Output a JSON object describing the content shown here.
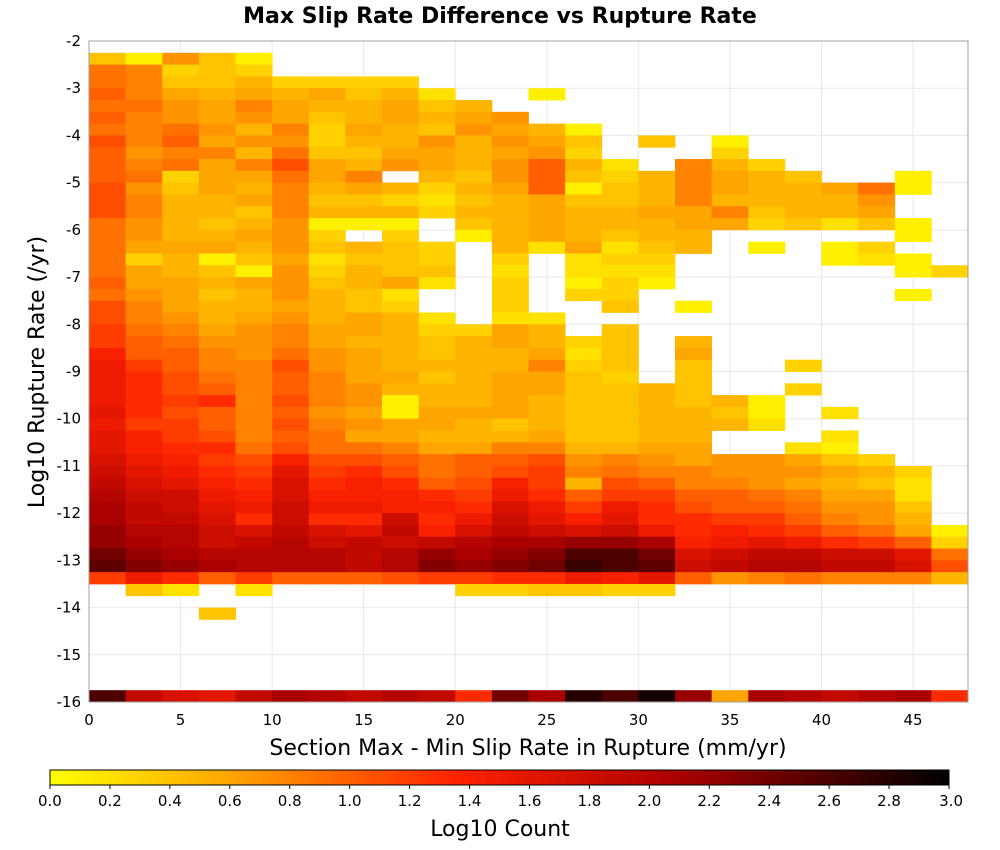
{
  "chart_data": {
    "type": "heatmap",
    "title": "Max Slip Rate Difference vs Rupture Rate",
    "xlabel": "Section Max - Min Slip Rate in Rupture (mm/yr)",
    "ylabel": "Log10 Rupture Rate (/yr)",
    "colorbar_label": "Log10 Count",
    "xlim": [
      0,
      48
    ],
    "ylim": [
      -16,
      -2
    ],
    "x_ticks": [
      "0",
      "5",
      "10",
      "15",
      "20",
      "25",
      "30",
      "35",
      "40",
      "45"
    ],
    "y_ticks": [
      "-2",
      "-3",
      "-4",
      "-5",
      "-6",
      "-7",
      "-8",
      "-9",
      "-10",
      "-11",
      "-12",
      "-13",
      "-14",
      "-15",
      "-16"
    ],
    "colorbar_ticks": [
      "0.0",
      "0.2",
      "0.4",
      "0.6",
      "0.8",
      "1.0",
      "1.2",
      "1.4",
      "1.6",
      "1.8",
      "2.0",
      "2.2",
      "2.4",
      "2.6",
      "2.8",
      "3.0"
    ],
    "colorbar_range": [
      0,
      3
    ],
    "colormap": [
      "#ffff00",
      "#ffa500",
      "#ff2200",
      "#aa0000",
      "#000000"
    ],
    "grid": true,
    "x_bin_width": 2,
    "y_bin_height": 0.25,
    "x_bin_starts": [
      0,
      2,
      4,
      6,
      8,
      10,
      12,
      14,
      16,
      18,
      20,
      22,
      24,
      26,
      28,
      30,
      32,
      34,
      36,
      38,
      40,
      42,
      44,
      46
    ],
    "y_bin_starts": [
      -2.5,
      -2.75,
      -3.0,
      -3.25,
      -3.5,
      -3.75,
      -4.0,
      -4.25,
      -4.5,
      -4.75,
      -5.0,
      -5.25,
      -5.5,
      -5.75,
      -6.0,
      -6.25,
      -6.5,
      -6.75,
      -7.0,
      -7.25,
      -7.5,
      -7.75,
      -8.0,
      -8.25,
      -8.5,
      -8.75,
      -9.0,
      -9.25,
      -9.5,
      -9.75,
      -10.0,
      -10.25,
      -10.5,
      -10.75,
      -11.0,
      -11.25,
      -11.5,
      -11.75,
      -12.0,
      -12.25,
      -12.5,
      -12.75,
      -13.0,
      -13.25,
      -13.5,
      -13.75,
      -14.0,
      -14.25,
      -14.5,
      -16.0
    ],
    "log10_count_by_row": [
      [
        0.4,
        0.1,
        0.7,
        0.4,
        0.1,
        null,
        null,
        null,
        null,
        null,
        null,
        null,
        null,
        null,
        null,
        null,
        null,
        null,
        null,
        null,
        null,
        null,
        null,
        null
      ],
      [
        0.9,
        0.8,
        0.3,
        0.4,
        0.3,
        null,
        null,
        null,
        null,
        null,
        null,
        null,
        null,
        null,
        null,
        null,
        null,
        null,
        null,
        null,
        null,
        null,
        null,
        null
      ],
      [
        0.9,
        0.8,
        0.4,
        0.4,
        0.5,
        0.3,
        0.3,
        0.3,
        0.3,
        null,
        null,
        null,
        null,
        null,
        null,
        null,
        null,
        null,
        null,
        null,
        null,
        null,
        null,
        null
      ],
      [
        1.0,
        0.8,
        0.6,
        0.5,
        0.6,
        0.5,
        0.6,
        0.4,
        0.5,
        0.2,
        null,
        null,
        0.1,
        null,
        null,
        null,
        null,
        null,
        null,
        null,
        null,
        null,
        null,
        null
      ],
      [
        0.9,
        0.9,
        0.7,
        0.6,
        0.8,
        0.6,
        0.5,
        0.5,
        0.6,
        0.4,
        0.5,
        null,
        null,
        null,
        null,
        null,
        null,
        null,
        null,
        null,
        null,
        null,
        null,
        null
      ],
      [
        1.0,
        0.8,
        0.7,
        0.6,
        0.7,
        0.6,
        0.4,
        0.5,
        0.6,
        0.5,
        0.6,
        0.7,
        null,
        null,
        null,
        null,
        null,
        null,
        null,
        null,
        null,
        null,
        null,
        null
      ],
      [
        0.9,
        0.8,
        0.9,
        0.7,
        0.5,
        0.8,
        0.3,
        0.6,
        0.5,
        0.4,
        0.7,
        0.6,
        0.5,
        0.1,
        null,
        null,
        null,
        null,
        null,
        null,
        null,
        null,
        null,
        null
      ],
      [
        1.1,
        0.8,
        1.0,
        0.6,
        0.7,
        0.7,
        0.3,
        0.5,
        0.5,
        0.7,
        0.5,
        0.7,
        0.6,
        0.4,
        null,
        0.4,
        null,
        0.1,
        null,
        null,
        null,
        null,
        null,
        null
      ],
      [
        1.0,
        0.7,
        0.8,
        0.8,
        0.5,
        0.9,
        0.4,
        0.4,
        0.6,
        0.6,
        0.5,
        0.6,
        0.7,
        0.3,
        null,
        null,
        null,
        0.3,
        null,
        null,
        null,
        null,
        null,
        null
      ],
      [
        1.0,
        0.8,
        0.9,
        0.6,
        0.8,
        1.1,
        0.6,
        0.5,
        0.7,
        0.6,
        0.5,
        0.7,
        1.0,
        0.5,
        0.2,
        null,
        0.8,
        0.5,
        0.3,
        null,
        null,
        null,
        null,
        null
      ],
      [
        1.0,
        0.9,
        0.3,
        0.6,
        0.6,
        0.9,
        0.6,
        0.8,
        null,
        0.5,
        0.4,
        0.7,
        1.0,
        0.4,
        0.3,
        0.5,
        0.8,
        0.6,
        0.5,
        0.4,
        null,
        null,
        0.1,
        null
      ],
      [
        1.1,
        0.7,
        0.4,
        0.6,
        0.5,
        0.8,
        0.5,
        0.6,
        0.5,
        0.3,
        0.5,
        0.6,
        1.0,
        0.1,
        0.4,
        0.5,
        0.8,
        0.6,
        0.5,
        0.5,
        0.6,
        0.9,
        0.1,
        null
      ],
      [
        1.1,
        0.8,
        0.5,
        0.5,
        0.6,
        0.8,
        0.4,
        0.4,
        0.3,
        0.2,
        0.4,
        0.5,
        0.6,
        0.4,
        0.4,
        0.5,
        0.8,
        0.5,
        0.5,
        0.5,
        0.5,
        0.7,
        null,
        null
      ],
      [
        1.1,
        0.8,
        0.5,
        0.5,
        0.4,
        0.8,
        0.5,
        0.5,
        0.5,
        0.3,
        0.5,
        0.5,
        0.6,
        0.5,
        0.5,
        0.6,
        0.6,
        0.8,
        0.4,
        0.5,
        0.5,
        0.6,
        null,
        null
      ],
      [
        0.9,
        0.7,
        0.5,
        0.4,
        0.5,
        0.7,
        0.1,
        0.1,
        0.1,
        null,
        0.4,
        0.5,
        0.6,
        0.5,
        0.5,
        0.5,
        0.6,
        0.6,
        0.3,
        0.4,
        0.2,
        0.4,
        0.1,
        null
      ],
      [
        0.9,
        0.7,
        0.5,
        0.5,
        0.6,
        0.7,
        0.3,
        null,
        0.3,
        null,
        0.1,
        0.5,
        0.6,
        0.5,
        0.4,
        0.5,
        0.5,
        null,
        null,
        null,
        null,
        null,
        0.1,
        null
      ],
      [
        0.9,
        0.6,
        0.6,
        0.6,
        0.5,
        0.7,
        0.4,
        0.5,
        0.4,
        0.3,
        null,
        0.5,
        0.2,
        0.6,
        0.2,
        0.4,
        0.5,
        null,
        0.1,
        null,
        0.1,
        0.3,
        null,
        null
      ],
      [
        0.9,
        0.3,
        0.5,
        0.1,
        0.4,
        0.6,
        0.2,
        0.4,
        0.4,
        0.3,
        null,
        0.3,
        null,
        0.2,
        0.3,
        0.3,
        null,
        null,
        null,
        null,
        0.1,
        0.2,
        0.1,
        null
      ],
      [
        0.9,
        0.6,
        0.5,
        0.4,
        0.1,
        0.7,
        0.3,
        0.5,
        0.4,
        0.4,
        null,
        0.2,
        null,
        0.2,
        0.2,
        0.2,
        null,
        null,
        null,
        null,
        null,
        null,
        0.1,
        0.3
      ],
      [
        1.0,
        0.6,
        0.6,
        0.5,
        0.6,
        0.7,
        0.4,
        0.5,
        0.6,
        0.2,
        null,
        0.3,
        null,
        0.1,
        0.3,
        0.1,
        null,
        null,
        null,
        null,
        null,
        null,
        null,
        null
      ],
      [
        0.9,
        0.7,
        0.6,
        0.4,
        0.5,
        0.7,
        0.5,
        0.4,
        0.2,
        null,
        null,
        0.3,
        null,
        0.3,
        0.3,
        null,
        null,
        null,
        null,
        null,
        null,
        null,
        0.1,
        null
      ],
      [
        1.1,
        0.8,
        0.6,
        0.5,
        0.5,
        0.6,
        0.5,
        0.4,
        0.3,
        null,
        null,
        0.3,
        null,
        null,
        0.4,
        null,
        0.1,
        null,
        null,
        null,
        null,
        null,
        null,
        null
      ],
      [
        1.1,
        0.8,
        0.7,
        0.5,
        0.6,
        0.7,
        0.5,
        0.6,
        0.5,
        0.2,
        null,
        0.2,
        0.2,
        null,
        null,
        null,
        null,
        null,
        null,
        null,
        null,
        null,
        null,
        null
      ],
      [
        1.2,
        0.9,
        0.8,
        0.6,
        0.7,
        0.8,
        0.6,
        0.6,
        0.5,
        0.3,
        0.3,
        0.6,
        0.5,
        null,
        0.4,
        null,
        null,
        null,
        null,
        null,
        null,
        null,
        null,
        null
      ],
      [
        1.2,
        1.0,
        0.9,
        0.7,
        0.7,
        0.8,
        0.6,
        0.5,
        0.5,
        0.4,
        0.5,
        0.6,
        0.5,
        0.3,
        0.4,
        null,
        0.5,
        null,
        null,
        null,
        null,
        null,
        null,
        null
      ],
      [
        1.4,
        1.0,
        1.0,
        0.8,
        0.7,
        0.9,
        0.7,
        0.6,
        0.5,
        0.4,
        0.5,
        0.5,
        0.6,
        0.2,
        0.4,
        null,
        0.6,
        null,
        null,
        null,
        null,
        null,
        null,
        null
      ],
      [
        1.5,
        1.2,
        1.0,
        0.8,
        0.8,
        1.1,
        0.7,
        0.6,
        0.5,
        0.5,
        0.5,
        0.5,
        0.8,
        0.3,
        0.4,
        null,
        0.4,
        null,
        null,
        0.3,
        null,
        null,
        null,
        null
      ],
      [
        1.5,
        1.3,
        1.1,
        0.9,
        0.8,
        1.0,
        0.8,
        0.6,
        0.6,
        0.4,
        0.5,
        0.6,
        0.6,
        0.4,
        0.3,
        null,
        0.4,
        null,
        null,
        null,
        null,
        null,
        null,
        null
      ],
      [
        1.5,
        1.3,
        1.1,
        1.0,
        0.8,
        1.0,
        0.8,
        0.7,
        0.5,
        0.5,
        0.5,
        0.6,
        0.6,
        0.4,
        0.4,
        0.5,
        0.4,
        null,
        null,
        0.3,
        null,
        null,
        null,
        null
      ],
      [
        1.5,
        1.3,
        1.2,
        1.3,
        0.8,
        1.1,
        0.8,
        0.7,
        0.1,
        0.5,
        0.5,
        0.6,
        0.5,
        0.4,
        0.4,
        0.5,
        0.4,
        0.5,
        0.1,
        null,
        null,
        null,
        null,
        null
      ],
      [
        1.6,
        1.3,
        1.1,
        1.0,
        0.8,
        1.0,
        0.7,
        0.6,
        0.1,
        0.6,
        0.6,
        0.6,
        0.5,
        0.4,
        0.4,
        0.5,
        0.5,
        0.4,
        0.1,
        null,
        0.2,
        null,
        null,
        null
      ],
      [
        1.5,
        1.2,
        1.2,
        1.0,
        0.8,
        1.1,
        0.8,
        0.7,
        0.6,
        0.6,
        0.5,
        0.4,
        0.5,
        0.4,
        0.4,
        0.5,
        0.5,
        0.5,
        0.2,
        null,
        null,
        null,
        null,
        null
      ],
      [
        1.6,
        1.4,
        1.2,
        1.1,
        0.8,
        1.0,
        0.9,
        0.6,
        0.6,
        0.5,
        0.5,
        0.5,
        0.6,
        0.4,
        0.4,
        0.5,
        0.5,
        null,
        null,
        null,
        0.2,
        null,
        null,
        null
      ],
      [
        1.6,
        1.4,
        1.3,
        1.3,
        0.9,
        1.1,
        0.9,
        0.9,
        0.8,
        0.6,
        0.6,
        0.8,
        0.8,
        0.5,
        0.5,
        0.6,
        0.6,
        null,
        null,
        0.2,
        0.1,
        null,
        null,
        null
      ],
      [
        1.7,
        1.5,
        1.4,
        1.2,
        1.1,
        1.4,
        1.1,
        1.1,
        1.0,
        0.9,
        1.0,
        1.0,
        1.1,
        0.7,
        0.8,
        0.7,
        0.6,
        0.7,
        0.7,
        0.6,
        0.4,
        0.3,
        null,
        null
      ],
      [
        1.8,
        1.6,
        1.5,
        1.3,
        1.2,
        1.6,
        1.2,
        1.3,
        1.1,
        0.9,
        1.0,
        1.1,
        1.2,
        0.8,
        0.9,
        0.8,
        0.8,
        0.7,
        0.7,
        0.7,
        0.6,
        0.5,
        0.3,
        null
      ],
      [
        1.9,
        1.7,
        1.6,
        1.4,
        1.3,
        1.7,
        1.3,
        1.4,
        1.3,
        1.0,
        1.1,
        1.4,
        1.2,
        0.5,
        1.1,
        1.0,
        0.8,
        0.8,
        0.7,
        0.6,
        0.5,
        0.4,
        0.2,
        null
      ],
      [
        2.0,
        1.8,
        1.8,
        1.5,
        1.4,
        1.7,
        1.4,
        1.4,
        1.4,
        1.3,
        1.2,
        1.5,
        1.3,
        1.0,
        1.2,
        1.2,
        1.0,
        1.0,
        0.9,
        0.8,
        0.6,
        0.6,
        0.2,
        null
      ],
      [
        2.1,
        1.9,
        1.8,
        1.6,
        1.5,
        1.8,
        1.5,
        1.5,
        1.4,
        1.4,
        1.3,
        1.7,
        1.5,
        1.2,
        1.5,
        1.3,
        1.1,
        1.0,
        1.0,
        0.9,
        0.7,
        0.7,
        0.4,
        null
      ],
      [
        2.1,
        1.9,
        1.9,
        1.7,
        1.3,
        1.8,
        1.3,
        1.3,
        1.8,
        1.3,
        1.5,
        1.8,
        1.6,
        1.4,
        1.6,
        1.3,
        1.3,
        1.2,
        1.2,
        1.0,
        0.8,
        0.7,
        0.5,
        null
      ],
      [
        2.2,
        2.0,
        2.0,
        1.8,
        1.7,
        1.9,
        1.7,
        1.6,
        1.9,
        1.4,
        1.7,
        1.9,
        1.8,
        1.7,
        1.8,
        1.5,
        1.3,
        1.4,
        1.3,
        1.2,
        1.0,
        0.9,
        0.6,
        0.1
      ],
      [
        2.2,
        2.1,
        2.0,
        1.8,
        1.9,
        2.0,
        1.8,
        1.9,
        1.8,
        1.9,
        2.0,
        2.1,
        2.1,
        2.2,
        2.2,
        2.1,
        1.4,
        1.5,
        1.6,
        1.5,
        1.3,
        1.2,
        1.0,
        0.3
      ],
      [
        2.4,
        2.2,
        2.1,
        2.0,
        2.0,
        2.0,
        2.0,
        1.9,
        2.0,
        2.2,
        2.1,
        2.2,
        2.3,
        2.6,
        2.6,
        2.4,
        1.7,
        1.8,
        1.9,
        1.9,
        1.8,
        1.8,
        1.6,
        0.9
      ],
      [
        2.5,
        2.3,
        2.2,
        2.1,
        2.0,
        2.0,
        2.0,
        1.9,
        2.0,
        2.3,
        2.2,
        2.3,
        2.4,
        2.7,
        2.6,
        2.5,
        1.8,
        1.9,
        2.0,
        2.0,
        1.9,
        1.9,
        1.7,
        1.1
      ],
      [
        1.2,
        1.5,
        1.3,
        1.0,
        1.2,
        1.0,
        1.0,
        1.0,
        1.1,
        1.2,
        1.2,
        1.3,
        1.3,
        1.5,
        1.4,
        1.6,
        1.0,
        0.7,
        0.8,
        0.9,
        0.8,
        0.8,
        0.8,
        0.5
      ],
      [
        null,
        0.4,
        0.2,
        null,
        0.2,
        null,
        null,
        null,
        null,
        null,
        0.3,
        0.3,
        0.4,
        0.4,
        0.3,
        0.3,
        null,
        null,
        null,
        null,
        null,
        null,
        null,
        null
      ],
      [
        null,
        null,
        null,
        null,
        null,
        null,
        null,
        null,
        null,
        null,
        null,
        null,
        null,
        null,
        null,
        null,
        null,
        null,
        null,
        null,
        null,
        null,
        null,
        null
      ],
      [
        null,
        null,
        null,
        0.4,
        null,
        null,
        null,
        null,
        null,
        null,
        null,
        null,
        null,
        null,
        null,
        null,
        null,
        null,
        null,
        null,
        null,
        null,
        null,
        null
      ],
      [
        null,
        null,
        null,
        null,
        null,
        null,
        null,
        null,
        null,
        null,
        null,
        null,
        null,
        null,
        null,
        null,
        null,
        null,
        null,
        null,
        null,
        null,
        null,
        null
      ],
      [
        2.6,
        1.9,
        1.7,
        1.6,
        1.9,
        2.1,
        2.0,
        1.9,
        2.0,
        1.9,
        1.3,
        2.4,
        2.1,
        2.8,
        2.6,
        2.9,
        2.2,
        0.6,
        2.1,
        2.0,
        1.9,
        2.0,
        2.1,
        1.3
      ]
    ]
  }
}
